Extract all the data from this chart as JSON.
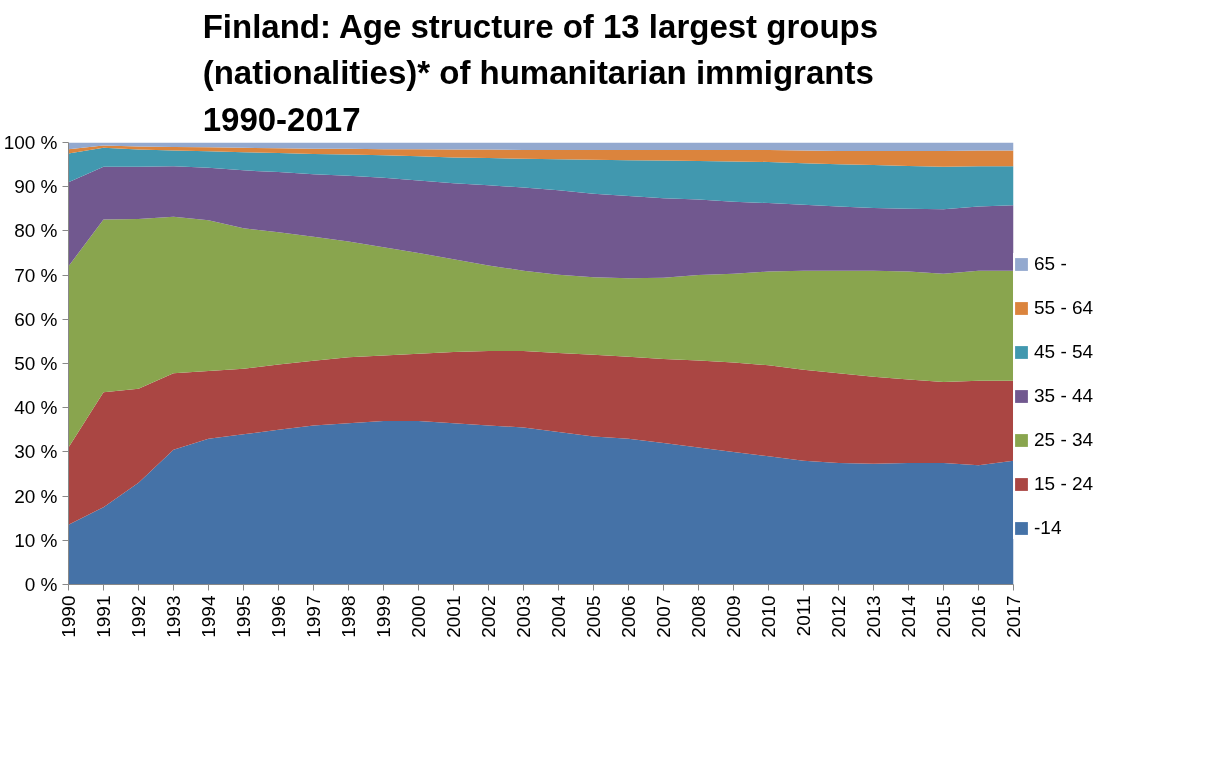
{
  "chart_data": {
    "type": "area",
    "stacked": true,
    "title": "Finland: Age structure of 13 largest groups (nationalities)* of humanitarian immigrants 1990-2017",
    "x": [
      1990,
      1991,
      1992,
      1993,
      1994,
      1995,
      1996,
      1997,
      1998,
      1999,
      2000,
      2001,
      2002,
      2003,
      2004,
      2005,
      2006,
      2007,
      2008,
      2009,
      2010,
      2011,
      2012,
      2013,
      2014,
      2015,
      2016,
      2017
    ],
    "xlim": [
      1990,
      2017
    ],
    "xticks": [
      1990,
      1991,
      1992,
      1993,
      1994,
      1995,
      1996,
      1997,
      1998,
      1999,
      2000,
      2001,
      2002,
      2003,
      2004,
      2005,
      2006,
      2007,
      2008,
      2009,
      2010,
      2011,
      2012,
      2013,
      2014,
      2015,
      2016,
      2017
    ],
    "ylim": [
      0,
      100
    ],
    "yticks": [
      {
        "value": 0,
        "label": "0 %"
      },
      {
        "value": 10,
        "label": "10 %"
      },
      {
        "value": 20,
        "label": "20 %"
      },
      {
        "value": 30,
        "label": "30 %"
      },
      {
        "value": 40,
        "label": "40 %"
      },
      {
        "value": 50,
        "label": "50 %"
      },
      {
        "value": 60,
        "label": "60 %"
      },
      {
        "value": 70,
        "label": "70 %"
      },
      {
        "value": 80,
        "label": "80 %"
      },
      {
        "value": 90,
        "label": "90 %"
      },
      {
        "value": 100,
        "label": "100 %"
      }
    ],
    "grid": false,
    "legend": "right",
    "series": [
      {
        "name": "-14",
        "color": "#4572a7",
        "values": [
          13.5,
          17.5,
          23,
          30.5,
          33,
          34,
          35,
          36,
          36.5,
          37,
          37,
          36.5,
          36,
          35.5,
          34.5,
          33.5,
          33,
          32,
          31,
          30,
          29,
          28,
          27.5,
          27.3,
          27.5,
          27.5,
          27,
          28
        ]
      },
      {
        "name": "15 - 24",
        "color": "#aa4643",
        "values": [
          17.5,
          26,
          21.3,
          17.3,
          15.3,
          14.8,
          14.8,
          14.6,
          14.9,
          14.8,
          15.2,
          16.1,
          16.8,
          17.3,
          17.9,
          18.5,
          18.5,
          19,
          19.7,
          20.2,
          20.6,
          20.6,
          20.3,
          19.7,
          18.9,
          18.3,
          19.1,
          18.1
        ]
      },
      {
        "name": "25 - 34",
        "color": "#89a54e",
        "values": [
          41,
          39.1,
          38.4,
          35.4,
          34.1,
          31.8,
          29.9,
          28.1,
          26.2,
          24.5,
          22.8,
          21,
          19.4,
          18.2,
          17.7,
          17.5,
          17.8,
          18.4,
          19.3,
          20.1,
          21.2,
          22.4,
          23.2,
          24,
          24.4,
          24.5,
          24.9,
          24.9
        ]
      },
      {
        "name": "35 - 44",
        "color": "#71588f",
        "values": [
          19,
          11.9,
          11.8,
          11.4,
          11.9,
          13.1,
          13.6,
          14.1,
          14.9,
          15.7,
          16.4,
          17.2,
          18.1,
          18.8,
          19.1,
          18.9,
          18.6,
          18,
          17.1,
          16.3,
          15.5,
          14.9,
          14.5,
          14.2,
          14.2,
          14.6,
          14.5,
          14.8
        ]
      },
      {
        "name": "45 - 54",
        "color": "#4198af",
        "values": [
          6.5,
          4.3,
          3.9,
          3.6,
          3.7,
          4.1,
          4.3,
          4.6,
          4.8,
          5.1,
          5.5,
          5.8,
          6.2,
          6.5,
          7,
          7.7,
          8.1,
          8.5,
          8.7,
          9.1,
          9.3,
          9.4,
          9.6,
          9.7,
          9.7,
          9.6,
          9.1,
          8.8
        ]
      },
      {
        "name": "55 - 64",
        "color": "#db843d",
        "values": [
          1,
          0.5,
          0.7,
          0.8,
          0.9,
          1,
          1.1,
          1.2,
          1.3,
          1.4,
          1.6,
          1.8,
          1.9,
          2,
          2.1,
          2.2,
          2.3,
          2.4,
          2.5,
          2.6,
          2.7,
          2.9,
          3,
          3.2,
          3.4,
          3.6,
          3.6,
          3.6
        ]
      },
      {
        "name": "65 -",
        "color": "#93a9cf",
        "values": [
          1.5,
          0.7,
          0.9,
          1,
          1.1,
          1.2,
          1.3,
          1.4,
          1.4,
          1.5,
          1.5,
          1.6,
          1.6,
          1.7,
          1.7,
          1.7,
          1.7,
          1.7,
          1.7,
          1.7,
          1.7,
          1.8,
          1.9,
          1.9,
          1.9,
          1.9,
          1.8,
          1.8
        ]
      }
    ]
  }
}
